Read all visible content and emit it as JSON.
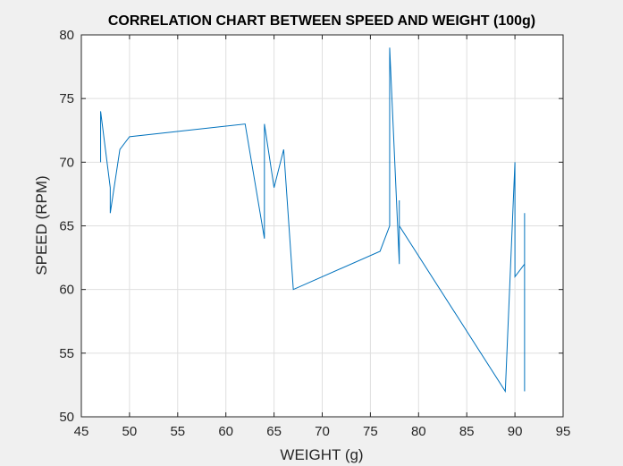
{
  "chart_data": {
    "type": "line",
    "title": "CORRELATION CHART BETWEEN SPEED AND WEIGHT (100g)",
    "xlabel": "WEIGHT (g)",
    "ylabel": "SPEED (RPM)",
    "xlim": [
      45,
      95
    ],
    "ylim": [
      50,
      80
    ],
    "xticks": [
      45,
      50,
      55,
      60,
      65,
      70,
      75,
      80,
      85,
      90,
      95
    ],
    "yticks": [
      50,
      55,
      60,
      65,
      70,
      75,
      80
    ],
    "grid": true,
    "series": [
      {
        "color": "#0072bd",
        "x": [
          47,
          47,
          48,
          48,
          49,
          50,
          62,
          64,
          64,
          65,
          66,
          67,
          76,
          77,
          77,
          78,
          78,
          78,
          89,
          90,
          90,
          91,
          91,
          91
        ],
        "y": [
          70,
          74,
          68,
          66,
          71,
          72,
          73,
          64,
          73,
          68,
          71,
          60,
          63,
          65,
          79,
          62,
          67,
          65,
          52,
          70,
          61,
          62,
          66,
          52
        ]
      }
    ]
  },
  "colors": {
    "figure_background": "#f0f0f0",
    "axes_background": "#ffffff",
    "grid": "#dfdfdf",
    "axis": "#262626"
  }
}
